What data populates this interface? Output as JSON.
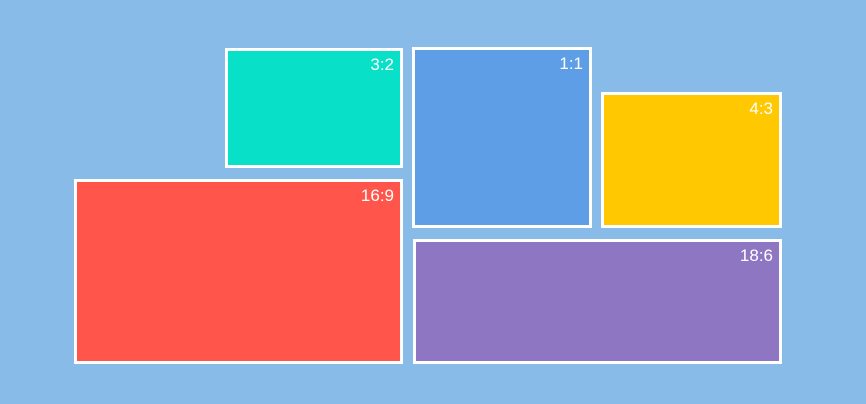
{
  "boxes": [
    {
      "label": "3:2"
    },
    {
      "label": "1:1"
    },
    {
      "label": "4:3"
    },
    {
      "label": "16:9"
    },
    {
      "label": "18:6"
    }
  ]
}
